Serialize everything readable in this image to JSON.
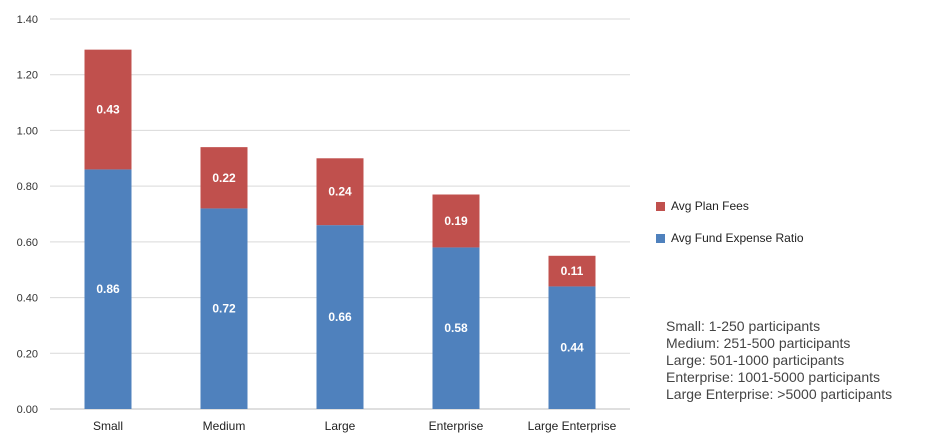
{
  "chart_data": {
    "type": "bar",
    "stacked": true,
    "categories": [
      "Small",
      "Medium",
      "Large",
      "Enterprise",
      "Large Enterprise"
    ],
    "series": [
      {
        "name": "Avg Fund Expense Ratio",
        "values": [
          0.86,
          0.72,
          0.66,
          0.58,
          0.44
        ],
        "color": "#4f81bd"
      },
      {
        "name": "Avg Plan Fees",
        "values": [
          0.43,
          0.22,
          0.24,
          0.19,
          0.11
        ],
        "color": "#c0504d"
      }
    ],
    "data_labels": {
      "Avg Fund Expense Ratio": [
        "0.86",
        "0.72",
        "0.66",
        "0.58",
        "0.44"
      ],
      "Avg Plan Fees": [
        "0.43",
        "0.22",
        "0.24",
        "0.19",
        "0.11"
      ]
    },
    "yticks": [
      "0.00",
      "0.20",
      "0.40",
      "0.60",
      "0.80",
      "1.00",
      "1.20",
      "1.40"
    ],
    "ylim": [
      0,
      1.4
    ],
    "grid": true,
    "legend_placement": "right",
    "legend": [
      "Avg Plan Fees",
      "Avg Fund Expense Ratio"
    ]
  },
  "notes": [
    "Small: 1-250 participants",
    "Medium: 251-500 participants",
    "Large: 501-1000 participants",
    "Enterprise: 1001-5000 participants",
    "Large Enterprise: >5000 participants"
  ]
}
